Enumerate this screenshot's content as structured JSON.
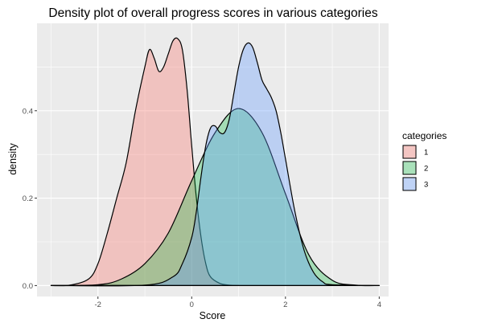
{
  "chart_data": {
    "type": "area",
    "subtype": "density",
    "title": "Density plot of overall progress scores in various categories",
    "xlabel": "Score",
    "ylabel": "density",
    "xlim": [
      -3.3,
      4.2
    ],
    "ylim": [
      -0.025,
      0.6
    ],
    "x_ticks": [
      -2,
      0,
      2,
      4
    ],
    "x_tick_labels": [
      "-2",
      "0",
      "2",
      "4"
    ],
    "y_ticks": [
      0.0,
      0.2,
      0.4
    ],
    "y_tick_labels": [
      "0.0",
      "0.2",
      "0.4"
    ],
    "grid": true,
    "legend": {
      "title": "categories",
      "position": "right"
    },
    "series": [
      {
        "name": "1",
        "fill": "#F8766D",
        "opacity": 0.35,
        "x": [
          -3.0,
          -2.6,
          -2.2,
          -2.0,
          -1.8,
          -1.6,
          -1.4,
          -1.2,
          -1.0,
          -0.9,
          -0.8,
          -0.7,
          -0.6,
          -0.5,
          -0.4,
          -0.3,
          -0.2,
          -0.1,
          0.0,
          0.1,
          0.2,
          0.3,
          0.4,
          0.6,
          0.8,
          1.0
        ],
        "y": [
          0.0,
          0.001,
          0.015,
          0.05,
          0.12,
          0.2,
          0.28,
          0.4,
          0.5,
          0.54,
          0.52,
          0.49,
          0.5,
          0.53,
          0.56,
          0.565,
          0.54,
          0.45,
          0.32,
          0.2,
          0.11,
          0.05,
          0.02,
          0.005,
          0.001,
          0.0
        ]
      },
      {
        "name": "2",
        "fill": "#00BA38",
        "opacity": 0.3,
        "x": [
          -3.0,
          -2.0,
          -1.5,
          -1.0,
          -0.5,
          0.0,
          0.5,
          1.0,
          1.5,
          2.0,
          2.5,
          3.0,
          3.5,
          4.0
        ],
        "y": [
          0.0,
          0.002,
          0.015,
          0.05,
          0.12,
          0.24,
          0.35,
          0.405,
          0.35,
          0.21,
          0.07,
          0.012,
          0.001,
          0.0
        ]
      },
      {
        "name": "3",
        "fill": "#619CFF",
        "opacity": 0.35,
        "x": [
          -3.0,
          -1.0,
          -0.4,
          -0.2,
          0.0,
          0.1,
          0.2,
          0.3,
          0.4,
          0.5,
          0.6,
          0.7,
          0.8,
          0.9,
          1.0,
          1.1,
          1.2,
          1.3,
          1.4,
          1.5,
          1.6,
          1.7,
          1.8,
          1.9,
          2.0,
          2.2,
          2.4,
          2.6,
          2.8,
          3.0,
          4.0
        ],
        "y": [
          0.0,
          0.001,
          0.02,
          0.05,
          0.11,
          0.17,
          0.25,
          0.32,
          0.36,
          0.365,
          0.35,
          0.35,
          0.38,
          0.44,
          0.5,
          0.54,
          0.555,
          0.545,
          0.51,
          0.47,
          0.45,
          0.43,
          0.4,
          0.35,
          0.29,
          0.17,
          0.08,
          0.03,
          0.008,
          0.002,
          0.0
        ]
      }
    ]
  }
}
